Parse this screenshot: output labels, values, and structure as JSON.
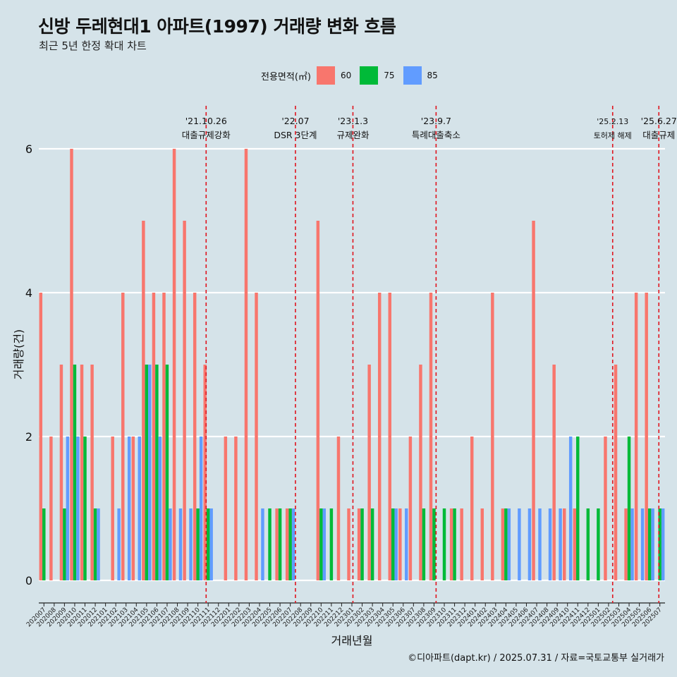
{
  "title": "신방 두레현대1 아파트(1997) 거래량 변화 흐름",
  "subtitle": "최근 5년 한정 확대 차트",
  "caption": "©디아파트(dapt.kr) / 2025.07.31 / 자료=국토교통부 실거래가",
  "legend": {
    "title": "전용면적(㎡)",
    "items": [
      {
        "label": "60",
        "color": "#f8766d"
      },
      {
        "label": "75",
        "color": "#00ba38"
      },
      {
        "label": "85",
        "color": "#619cff"
      }
    ]
  },
  "chart_data": {
    "type": "bar",
    "xlabel": "거래년월",
    "ylabel": "거래량(건)",
    "ylim": [
      -0.5,
      6.6
    ],
    "yticks": [
      0,
      2,
      4,
      6
    ],
    "grid": true,
    "legend_position": "top",
    "categories": [
      "202007",
      "202008",
      "202009",
      "202010",
      "202011",
      "202012",
      "202101",
      "202102",
      "202103",
      "202104",
      "202105",
      "202106",
      "202107",
      "202108",
      "202109",
      "202110",
      "202111",
      "202112",
      "202201",
      "202202",
      "202203",
      "202204",
      "202205",
      "202206",
      "202207",
      "202208",
      "202209",
      "202210",
      "202211",
      "202212",
      "202301",
      "202302",
      "202303",
      "202304",
      "202305",
      "202306",
      "202307",
      "202308",
      "202309",
      "202310",
      "202311",
      "202312",
      "202401",
      "202402",
      "202403",
      "202404",
      "202405",
      "202406",
      "202407",
      "202408",
      "202409",
      "202410",
      "202411",
      "202412",
      "202501",
      "202502",
      "202503",
      "202504",
      "202505",
      "202506",
      "202507"
    ],
    "series": [
      {
        "name": "60",
        "color": "#f8766d",
        "values": [
          4,
          2,
          3,
          6,
          3,
          3,
          0,
          2,
          4,
          2,
          5,
          4,
          4,
          6,
          5,
          4,
          3,
          0,
          2,
          2,
          6,
          4,
          0,
          1,
          1,
          0,
          0,
          5,
          0,
          2,
          1,
          1,
          3,
          4,
          4,
          1,
          2,
          3,
          4,
          0,
          1,
          1,
          2,
          1,
          4,
          1,
          0,
          0,
          5,
          0,
          3,
          1,
          1,
          0,
          0,
          2,
          3,
          1,
          4,
          4,
          0
        ]
      },
      {
        "name": "75",
        "color": "#00ba38",
        "values": [
          1,
          0,
          1,
          3,
          2,
          1,
          0,
          0,
          0,
          0,
          3,
          3,
          3,
          0,
          0,
          1,
          1,
          0,
          0,
          0,
          0,
          0,
          1,
          1,
          1,
          0,
          0,
          1,
          1,
          0,
          0,
          1,
          1,
          0,
          1,
          0,
          0,
          1,
          1,
          1,
          1,
          0,
          0,
          0,
          0,
          1,
          0,
          0,
          0,
          0,
          0,
          0,
          2,
          1,
          1,
          0,
          0,
          2,
          0,
          1,
          1
        ]
      },
      {
        "name": "85",
        "color": "#619cff",
        "values": [
          0,
          0,
          2,
          2,
          0,
          1,
          0,
          1,
          2,
          2,
          3,
          2,
          1,
          1,
          1,
          2,
          1,
          0,
          0,
          0,
          0,
          1,
          0,
          0,
          1,
          0,
          0,
          1,
          0,
          0,
          0,
          0,
          0,
          0,
          1,
          1,
          0,
          0,
          0,
          0,
          0,
          0,
          0,
          0,
          0,
          1,
          1,
          1,
          1,
          1,
          1,
          2,
          0,
          0,
          0,
          0,
          0,
          1,
          1,
          1,
          1
        ]
      }
    ],
    "events": [
      {
        "date": "'21.10.26",
        "label": "대출규제강화",
        "month_index": 15.8
      },
      {
        "date": "'22.07",
        "label": "DSR 3단계",
        "month_index": 24.5
      },
      {
        "date": "'23.1.3",
        "label": "규제완화",
        "month_index": 30.1
      },
      {
        "date": "'23.9.7",
        "label": "특례대출축소",
        "month_index": 38.2
      },
      {
        "date": "'25.2.13",
        "label": "토허제 해제",
        "month_index": 55.4
      },
      {
        "date": "'25.6.27",
        "label": "대출규제",
        "month_index": 59.9
      }
    ]
  }
}
